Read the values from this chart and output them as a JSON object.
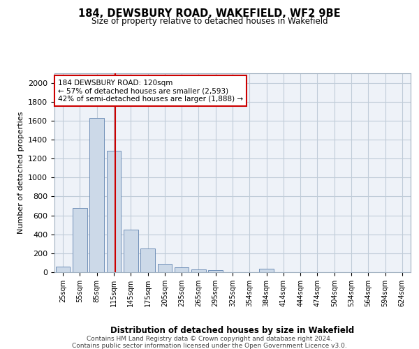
{
  "title": "184, DEWSBURY ROAD, WAKEFIELD, WF2 9BE",
  "subtitle": "Size of property relative to detached houses in Wakefield",
  "xlabel": "Distribution of detached houses by size in Wakefield",
  "ylabel": "Number of detached properties",
  "categories": [
    "25sqm",
    "55sqm",
    "85sqm",
    "115sqm",
    "145sqm",
    "175sqm",
    "205sqm",
    "235sqm",
    "265sqm",
    "295sqm",
    "325sqm",
    "354sqm",
    "384sqm",
    "414sqm",
    "444sqm",
    "474sqm",
    "504sqm",
    "534sqm",
    "564sqm",
    "594sqm",
    "624sqm"
  ],
  "values": [
    60,
    680,
    1630,
    1280,
    450,
    250,
    90,
    48,
    28,
    22,
    0,
    0,
    35,
    0,
    0,
    0,
    0,
    0,
    0,
    0,
    0
  ],
  "bar_color": "#ccd9e8",
  "bar_edge_color": "#7090b8",
  "vline_color": "#cc0000",
  "vline_x": 3.1,
  "annotation_text": "184 DEWSBURY ROAD: 120sqm\n← 57% of detached houses are smaller (2,593)\n42% of semi-detached houses are larger (1,888) →",
  "annotation_box_color": "#ffffff",
  "annotation_box_edge": "#cc0000",
  "ylim": [
    0,
    2100
  ],
  "yticks": [
    0,
    200,
    400,
    600,
    800,
    1000,
    1200,
    1400,
    1600,
    1800,
    2000
  ],
  "background_color": "#eef2f8",
  "grid_color": "#c0ccd8",
  "footer_line1": "Contains HM Land Registry data © Crown copyright and database right 2024.",
  "footer_line2": "Contains public sector information licensed under the Open Government Licence v3.0."
}
